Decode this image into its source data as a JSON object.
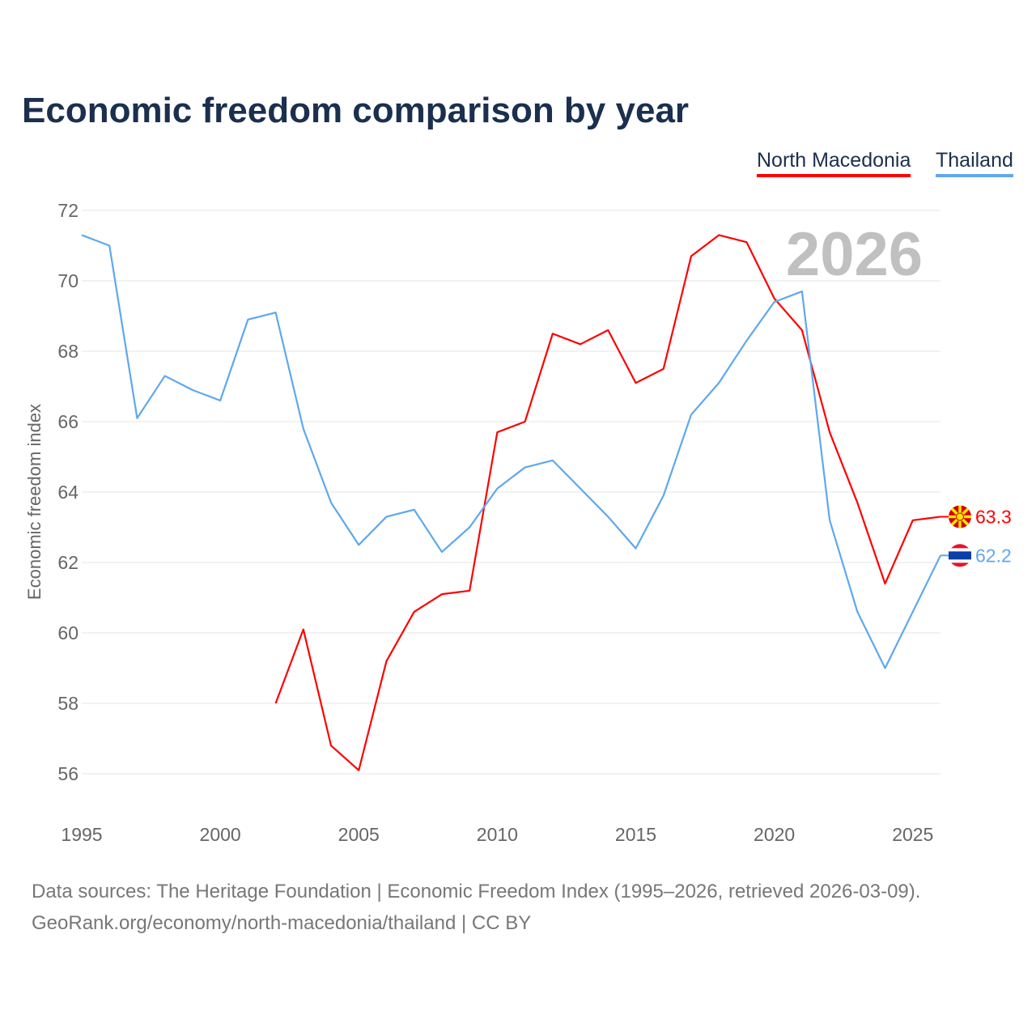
{
  "title": "Economic freedom comparison by year",
  "year_watermark": "2026",
  "footer": {
    "line1": "Data sources: The Heritage Foundation | Economic Freedom Index (1995–2026, retrieved 2026-03-09).",
    "line2": "GeoRank.org/economy/north-macedonia/thailand | CC BY"
  },
  "chart_data": {
    "type": "line",
    "title": "Economic freedom comparison by year",
    "xlabel": "",
    "ylabel": "Economic freedom index",
    "xlim": [
      1995,
      2026
    ],
    "ylim": [
      55,
      72
    ],
    "yticks": [
      56,
      58,
      60,
      62,
      64,
      66,
      68,
      70,
      72
    ],
    "xticks": [
      1995,
      2000,
      2005,
      2010,
      2015,
      2020,
      2025
    ],
    "grid": true,
    "legend_position": "top-right",
    "series": [
      {
        "name": "North Macedonia",
        "color": "#ff0000",
        "end_label": "63.3",
        "flag": "north-macedonia-flag-icon",
        "x": [
          2002,
          2003,
          2004,
          2005,
          2006,
          2007,
          2008,
          2009,
          2010,
          2011,
          2012,
          2013,
          2014,
          2015,
          2016,
          2017,
          2018,
          2019,
          2020,
          2021,
          2022,
          2023,
          2024,
          2025,
          2026
        ],
        "values": [
          58.0,
          60.1,
          56.8,
          56.1,
          59.2,
          60.6,
          61.1,
          61.2,
          65.7,
          66.0,
          68.5,
          68.2,
          68.6,
          67.1,
          67.5,
          70.7,
          71.3,
          71.1,
          69.5,
          68.6,
          65.7,
          63.7,
          61.4,
          63.2,
          63.3
        ]
      },
      {
        "name": "Thailand",
        "color": "#5ea8ee",
        "end_label": "62.2",
        "flag": "thailand-flag-icon",
        "x": [
          1995,
          1996,
          1997,
          1998,
          1999,
          2000,
          2001,
          2002,
          2003,
          2004,
          2005,
          2006,
          2007,
          2008,
          2009,
          2010,
          2011,
          2012,
          2013,
          2014,
          2015,
          2016,
          2017,
          2018,
          2019,
          2020,
          2021,
          2022,
          2023,
          2024,
          2025,
          2026
        ],
        "values": [
          71.3,
          71.0,
          66.1,
          67.3,
          66.9,
          66.6,
          68.9,
          69.1,
          65.8,
          63.7,
          62.5,
          63.3,
          63.5,
          62.3,
          63.0,
          64.1,
          64.7,
          64.9,
          64.1,
          63.3,
          62.4,
          63.9,
          66.2,
          67.1,
          68.3,
          69.4,
          69.7,
          63.2,
          60.6,
          59.0,
          60.6,
          62.2
        ]
      }
    ]
  }
}
